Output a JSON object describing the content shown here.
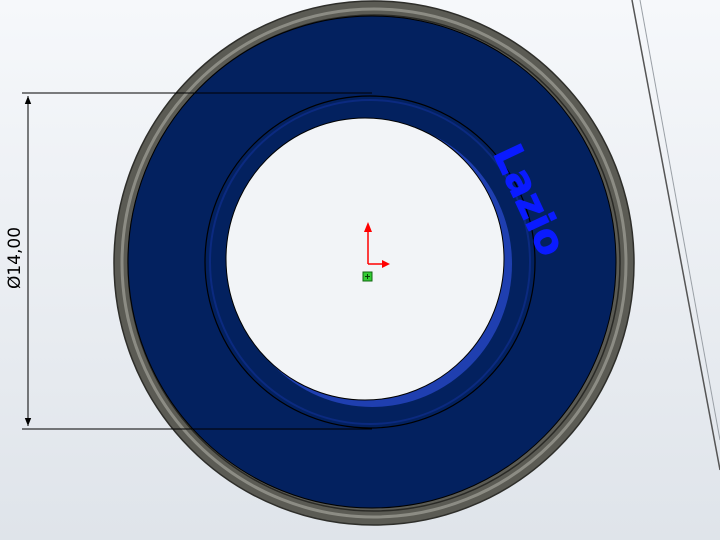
{
  "dimension": {
    "text": "Ø14,00"
  },
  "emboss": {
    "text": "Lazio"
  },
  "colors": {
    "part_face": "#03215f",
    "outer_rim": "#5a5a52",
    "rim_highlight": "#8a8a80",
    "emboss": "#0a1bff",
    "triad_y": "#ff0000",
    "triad_x": "#ff0000",
    "origin": "#33cc33",
    "dimension_line": "#000000"
  },
  "icons": {
    "origin": "origin-icon",
    "triad": "coordinate-triad-icon"
  }
}
